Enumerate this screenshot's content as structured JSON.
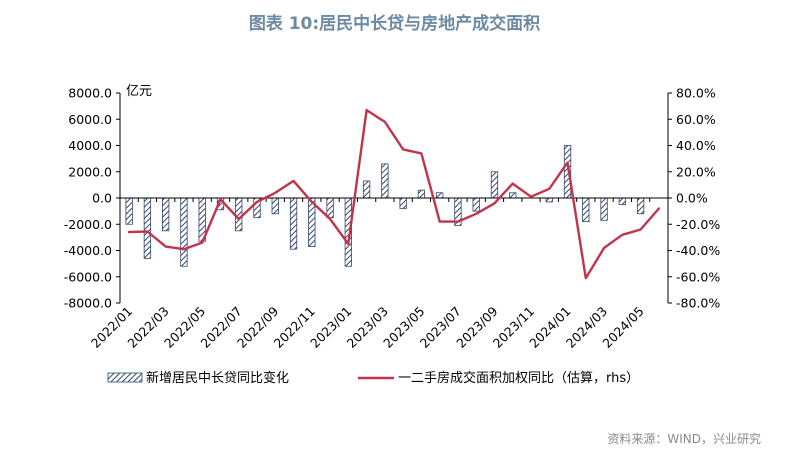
{
  "title": "图表 10:居民中长贷与房地产成交面积",
  "source": "资料来源：WIND，兴业研究",
  "colors": {
    "bar_stroke": "#34496b",
    "bar_hatch": "#34496b",
    "line": "#c2344b",
    "axis": "#000000",
    "title": "#6d8aa4"
  },
  "chart_data": {
    "type": "bar+line",
    "unit_left": "亿元",
    "yleft": {
      "range": [
        -8000,
        8000
      ],
      "ticks": [
        "8000.0",
        "6000.0",
        "4000.0",
        "2000.0",
        "0.0",
        "-2000.0",
        "-4000.0",
        "-6000.0",
        "-8000.0"
      ]
    },
    "yright": {
      "range": [
        -80,
        80
      ],
      "ticks": [
        "80.0%",
        "60.0%",
        "40.0%",
        "20.0%",
        "0.0%",
        "-20.0%",
        "-40.0%",
        "-60.0%",
        "-80.0%"
      ]
    },
    "x_tick_labels": [
      "2022/01",
      "2022/03",
      "2022/05",
      "2022/07",
      "2022/09",
      "2022/11",
      "2023/01",
      "2023/03",
      "2023/05",
      "2023/07",
      "2023/09",
      "2023/11",
      "2024/01",
      "2024/03",
      "2024/05"
    ],
    "categories": [
      "2022/01",
      "2022/02",
      "2022/03",
      "2022/04",
      "2022/05",
      "2022/06",
      "2022/07",
      "2022/08",
      "2022/09",
      "2022/10",
      "2022/11",
      "2022/12",
      "2023/01",
      "2023/02",
      "2023/03",
      "2023/04",
      "2023/05",
      "2023/06",
      "2023/07",
      "2023/08",
      "2023/09",
      "2023/10",
      "2023/11",
      "2023/12",
      "2024/01",
      "2024/02",
      "2024/03",
      "2024/04",
      "2024/05",
      "2024/06"
    ],
    "series": [
      {
        "name": "新增居民中长贷同比变化",
        "type": "bar",
        "axis": "left",
        "values": [
          -2000,
          -4600,
          -2500,
          -5200,
          -3300,
          -900,
          -2500,
          -1500,
          -1200,
          -3900,
          -3700,
          -1500,
          -5200,
          1300,
          2600,
          -800,
          600,
          400,
          -2100,
          -1000,
          2000,
          400,
          0,
          -300,
          4000,
          -1800,
          -1700,
          -500,
          -1200,
          0
        ]
      },
      {
        "name": "一二手房成交面积加权同比（估算，rhs）",
        "type": "line",
        "axis": "right",
        "values": [
          -26,
          -25.5,
          -37,
          -39,
          -34,
          -1,
          -16,
          -3,
          4,
          13,
          -3,
          -16,
          -35,
          67,
          58,
          37,
          34,
          -18,
          -18,
          -12,
          -4,
          11,
          1,
          7,
          27,
          -61,
          -38,
          -28,
          -24,
          -8
        ]
      }
    ]
  }
}
